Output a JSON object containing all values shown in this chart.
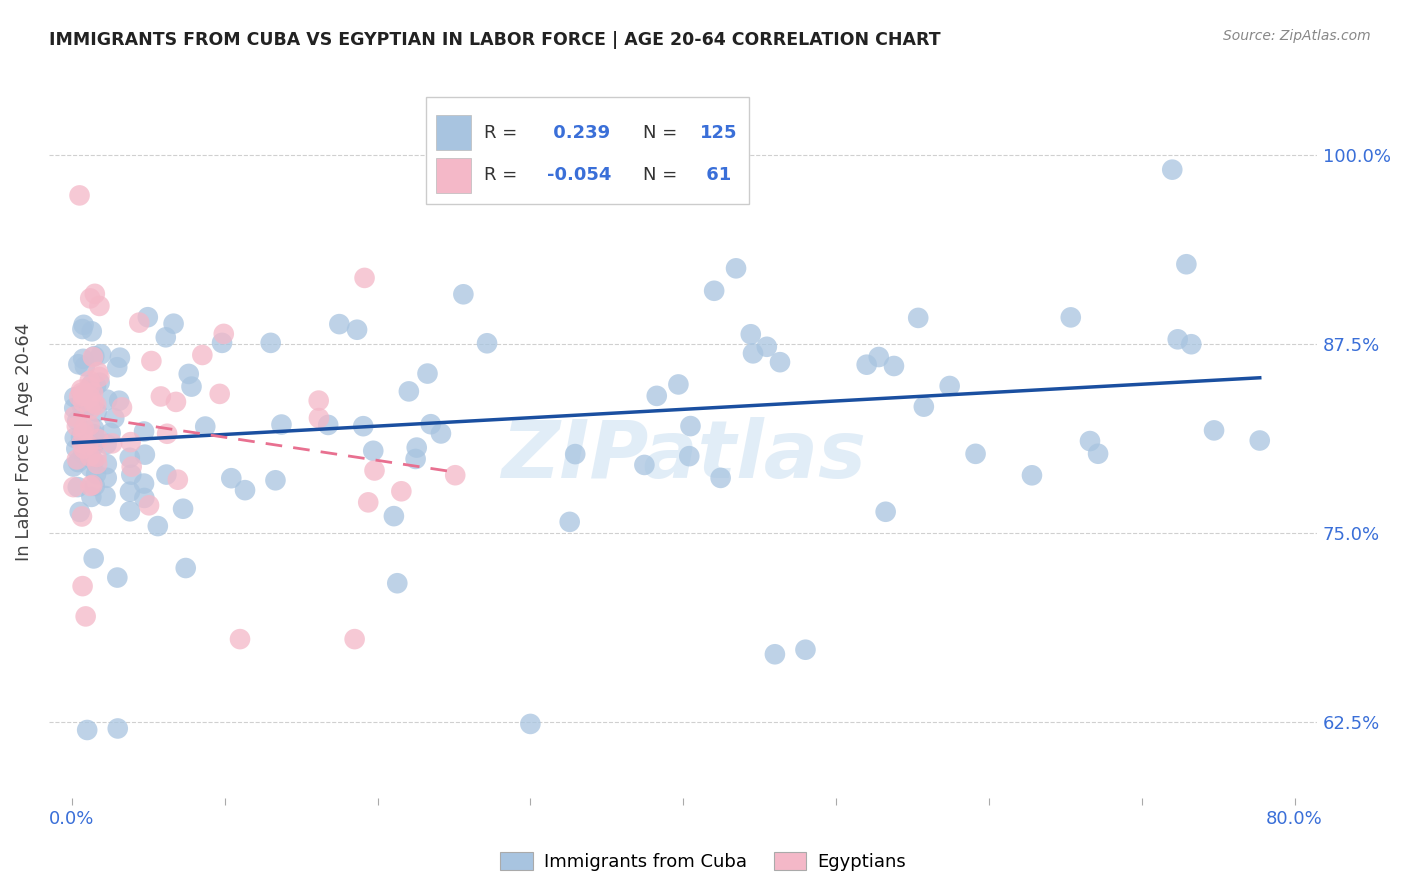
{
  "title": "IMMIGRANTS FROM CUBA VS EGYPTIAN IN LABOR FORCE | AGE 20-64 CORRELATION CHART",
  "source": "Source: ZipAtlas.com",
  "ylabel": "In Labor Force | Age 20-64",
  "x_ticks": [
    0.0,
    0.1,
    0.2,
    0.3,
    0.4,
    0.5,
    0.6,
    0.7,
    0.8
  ],
  "x_tick_labels": [
    "0.0%",
    "",
    "",
    "",
    "",
    "",
    "",
    "",
    "80.0%"
  ],
  "y_ticks": [
    0.625,
    0.75,
    0.875,
    1.0
  ],
  "y_tick_labels": [
    "62.5%",
    "75.0%",
    "87.5%",
    "100.0%"
  ],
  "xlim": [
    -0.015,
    0.815
  ],
  "ylim": [
    0.575,
    1.045
  ],
  "cuba_R": 0.239,
  "cuba_N": 125,
  "egypt_R": -0.054,
  "egypt_N": 61,
  "cuba_color": "#a8c4e0",
  "egypt_color": "#f4b8c8",
  "cuba_line_color": "#1a4fa0",
  "egypt_line_color": "#e87090",
  "watermark": "ZIPatlas",
  "legend_label_cuba": "Immigrants from Cuba",
  "legend_label_egypt": "Egyptians"
}
